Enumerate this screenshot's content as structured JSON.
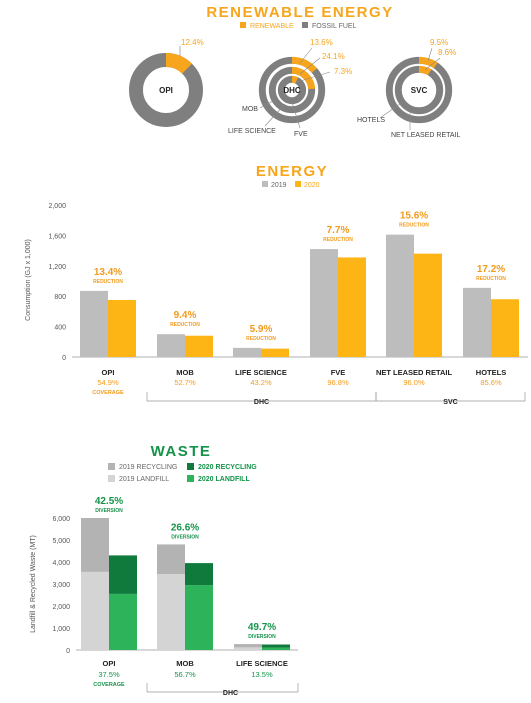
{
  "colors": {
    "renewable": "#F7A51C",
    "fossil": "#7F7F7F",
    "energy_2019": "#BDBDBD",
    "energy_2020": "#FDB515",
    "recycling_2019": "#B3B3B3",
    "landfill_2019": "#D4D4D4",
    "recycling_2020": "#0F7A3C",
    "landfill_2020": "#2DB35A",
    "label_orange": "#F29B1D",
    "label_green": "#14934A",
    "text_dark": "#333333",
    "axis_grey": "#777777"
  },
  "renewable_section": {
    "title": "RENEWABLE ENERGY",
    "legend": [
      "RENEWABLE",
      "FOSSIL FUEL"
    ]
  },
  "chart_data": [
    {
      "type": "pie",
      "title": "RENEWABLE ENERGY",
      "legend": [
        "RENEWABLE",
        "FOSSIL FUEL"
      ],
      "donuts": [
        {
          "center_label": "OPI",
          "rings": [
            {
              "name": "OPI",
              "renewable_pct": 12.4,
              "label": "12.4%"
            }
          ]
        },
        {
          "center_label": "DHC",
          "rings": [
            {
              "name": "MOB",
              "renewable_pct": 13.6,
              "label": "13.6%"
            },
            {
              "name": "LIFE SCIENCE",
              "renewable_pct": 24.1,
              "label": "24.1%"
            },
            {
              "name": "FVE",
              "renewable_pct": 7.3,
              "label": "7.3%"
            }
          ]
        },
        {
          "center_label": "SVC",
          "rings": [
            {
              "name": "NET LEASED RETAIL",
              "renewable_pct": 9.5,
              "label": "9.5%"
            },
            {
              "name": "HOTELS",
              "renewable_pct": 8.6,
              "label": "8.6%"
            }
          ]
        }
      ]
    },
    {
      "type": "bar",
      "title": "ENERGY",
      "ylabel": "Consumption (GJ x 1,000)",
      "ylim": [
        0,
        2000
      ],
      "yticks": [
        "2,000",
        "1,600",
        "1,200",
        "800",
        "400",
        "0"
      ],
      "ytick_values": [
        2000,
        1600,
        1200,
        800,
        400,
        0
      ],
      "categories": [
        "OPI",
        "MOB",
        "LIFE SCIENCE",
        "FVE",
        "NET LEASED RETAIL",
        "HOTELS"
      ],
      "series": [
        {
          "name": "2019",
          "values": [
            870,
            300,
            120,
            1420,
            1610,
            910
          ]
        },
        {
          "name": "2020",
          "values": [
            750,
            280,
            110,
            1310,
            1360,
            760
          ]
        }
      ],
      "annotations": [
        "13.4%",
        "9.4%",
        "5.9%",
        "7.7%",
        "15.6%",
        "17.2%"
      ],
      "annotation_caption": "REDUCTION",
      "coverage": [
        "54.9%",
        "52.7%",
        "43.2%",
        "96.8%",
        "96.0%",
        "85.6%"
      ],
      "coverage_caption": "COVERAGE",
      "groups": [
        {
          "label": "DHC",
          "from": 1,
          "to": 3
        },
        {
          "label": "SVC",
          "from": 4,
          "to": 5
        }
      ]
    },
    {
      "type": "bar",
      "title": "WASTE",
      "ylabel": "Landfill & Recycled Waste (MT)",
      "ylim": [
        0,
        6000
      ],
      "yticks": [
        "6,000",
        "5,000",
        "4,000",
        "3,000",
        "2,000",
        "1,000",
        "0"
      ],
      "ytick_values": [
        6000,
        5000,
        4000,
        3000,
        2000,
        1000,
        0
      ],
      "categories": [
        "OPI",
        "MOB",
        "LIFE SCIENCE"
      ],
      "series": [
        {
          "name": "2019 LANDFILL",
          "values": [
            3550,
            3450,
            120
          ]
        },
        {
          "name": "2019 RECYCLING",
          "values": [
            2450,
            1350,
            150
          ]
        },
        {
          "name": "2020 LANDFILL",
          "values": [
            2550,
            2950,
            110
          ]
        },
        {
          "name": "2020 RECYCLING",
          "values": [
            1750,
            1000,
            140
          ]
        }
      ],
      "legend": [
        "2019 RECYCLING",
        "2020 RECYCLING",
        "2019 LANDFILL",
        "2020 LANDFILL"
      ],
      "annotations": [
        "42.5%",
        "26.6%",
        "49.7%"
      ],
      "annotation_caption": "DIVERSION",
      "coverage": [
        "37.5%",
        "56.7%",
        "13.5%"
      ],
      "coverage_caption": "COVERAGE",
      "groups": [
        {
          "label": "DHC",
          "from": 1,
          "to": 2
        }
      ]
    }
  ]
}
